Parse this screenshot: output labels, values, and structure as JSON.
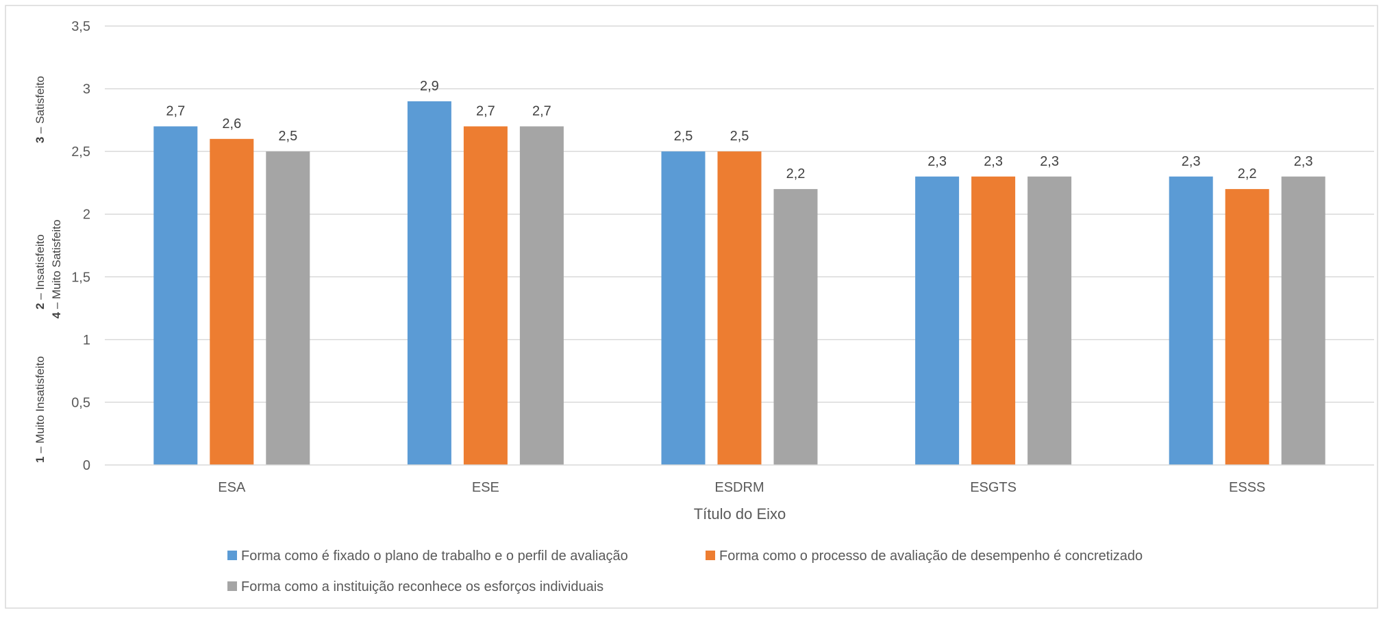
{
  "chart_data": {
    "type": "bar",
    "title": "",
    "xlabel": "Título do Eixo",
    "ylabel_lines": [
      "3 – Satisfeito",
      "2 – Insatisfeito",
      "4 – Muito Satisfeito",
      "1 – Muito Insatisfeito"
    ],
    "categories": [
      "ESA",
      "ESE",
      "ESDRM",
      "ESGTS",
      "ESSS"
    ],
    "series": [
      {
        "name": "Forma como é fixado o plano de trabalho e o perfil de avaliação",
        "color": "#5B9BD5",
        "values": [
          2.7,
          2.9,
          2.5,
          2.3,
          2.3
        ]
      },
      {
        "name": "Forma como o processo de avaliação de desempenho é concretizado",
        "color": "#ED7D31",
        "values": [
          2.6,
          2.7,
          2.5,
          2.3,
          2.2
        ]
      },
      {
        "name": "Forma como a instituição reconhece os esforços individuais",
        "color": "#A5A5A5",
        "values": [
          2.5,
          2.7,
          2.2,
          2.3,
          2.3
        ]
      }
    ],
    "ylim": [
      0,
      3.5
    ],
    "yticks": [
      0,
      0.5,
      1,
      1.5,
      2,
      2.5,
      3,
      3.5
    ],
    "ytick_labels": [
      "0",
      "0,5",
      "1",
      "1,5",
      "2",
      "2,5",
      "3",
      "3,5"
    ],
    "data_labels": [
      [
        "2,7",
        "2,9",
        "2,5",
        "2,3",
        "2,3"
      ],
      [
        "2,6",
        "2,7",
        "2,5",
        "2,3",
        "2,2"
      ],
      [
        "2,5",
        "2,7",
        "2,2",
        "2,3",
        "2,3"
      ]
    ],
    "grid": true,
    "legend_position": "bottom"
  }
}
